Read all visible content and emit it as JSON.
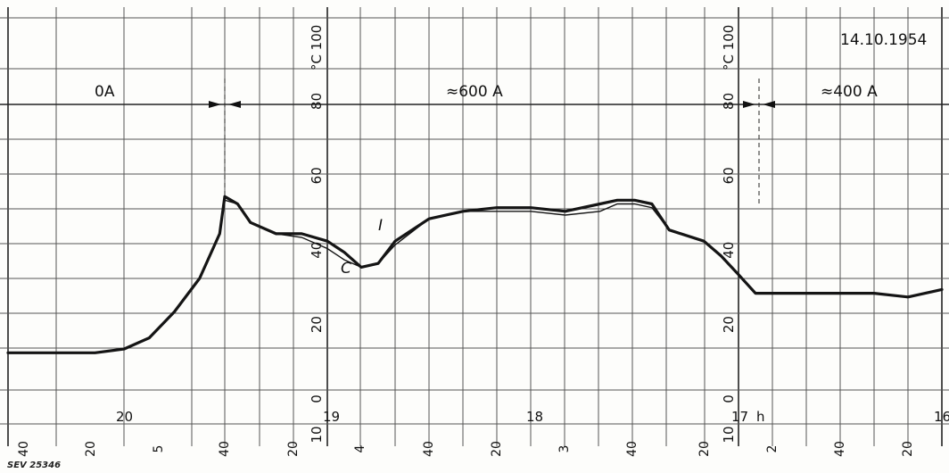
{
  "date": "14.10.1954",
  "figure_id": "SEV 25346",
  "temperature_unit": "°C",
  "temp_ticks": [
    "0",
    "20",
    "60",
    "80",
    "100"
  ],
  "bottom_tick": "10",
  "segments": [
    {
      "label": "0A"
    },
    {
      "label": "≈600 A"
    },
    {
      "label": "≈400 A"
    }
  ],
  "hour_labels": [
    "20",
    "19",
    "18",
    "17",
    "h",
    "16"
  ],
  "minute_labels": [
    "40",
    "20",
    "5",
    "40",
    "20",
    "4",
    "40",
    "20",
    "3",
    "40",
    "20",
    "2",
    "40",
    "20"
  ],
  "curve_labels": {
    "upper": "I",
    "lower": "C"
  },
  "chart_data": {
    "type": "line",
    "date": "14.10.1954",
    "ylabel": "°C",
    "ylim": [
      -10,
      100
    ],
    "xlabel": "h",
    "x_direction": "time decreasing left to right (hours 20 → 16)",
    "grid": true,
    "events": [
      {
        "label": "0A",
        "until": "≈19:40"
      },
      {
        "label": "≈600 A",
        "from": "≈19:40",
        "until": "≈16:48"
      },
      {
        "label": "≈400 A",
        "from": "≈16:48"
      }
    ],
    "series": [
      {
        "name": "I",
        "x": [
          "20:40",
          "20:30",
          "20:20",
          "20:10",
          "20:00",
          "19:55",
          "19:50",
          "19:45",
          "19:41",
          "19:40",
          "19:35",
          "19:30",
          "19:20",
          "19:10",
          "19:00",
          "18:55",
          "18:50",
          "18:45",
          "18:40",
          "18:30",
          "18:20",
          "18:10",
          "18:00",
          "17:50",
          "17:40",
          "17:35",
          "17:30",
          "17:25",
          "17:20",
          "17:10",
          "17:05",
          "17:00",
          "16:55",
          "16:50",
          "16:49",
          "16:48",
          "16:40",
          "16:30",
          "16:20",
          "16:10",
          "16:00"
        ],
        "values": [
          10,
          10,
          10,
          10,
          11,
          14,
          21,
          30,
          42,
          52,
          50,
          45,
          42,
          42,
          40,
          37,
          33,
          34,
          40,
          46,
          48,
          49,
          49,
          48,
          50,
          51,
          51,
          50,
          43,
          40,
          36,
          31,
          26,
          26,
          26,
          26,
          26,
          26,
          26,
          25,
          27
        ]
      },
      {
        "name": "C",
        "x": [
          "20:40",
          "20:30",
          "20:20",
          "20:10",
          "20:00",
          "19:55",
          "19:50",
          "19:45",
          "19:41",
          "19:40",
          "19:35",
          "19:30",
          "19:20",
          "19:10",
          "19:00",
          "18:55",
          "18:50",
          "18:45",
          "18:40",
          "18:30",
          "18:20",
          "18:10",
          "18:00",
          "17:50",
          "17:40",
          "17:35",
          "17:30",
          "17:25",
          "17:20",
          "17:10",
          "17:05",
          "17:00",
          "16:55",
          "16:50",
          "16:49",
          "16:48",
          "16:40",
          "16:30",
          "16:20",
          "16:10",
          "16:00"
        ],
        "values": [
          10,
          10,
          10,
          10,
          11,
          14,
          21,
          30,
          42,
          51,
          50,
          45,
          42,
          41,
          38,
          35,
          33,
          34,
          39,
          46,
          48,
          48,
          48,
          47,
          48,
          50,
          50,
          49,
          43,
          40,
          36,
          31,
          26,
          26,
          26,
          26,
          26,
          26,
          26,
          25,
          27
        ]
      }
    ]
  }
}
